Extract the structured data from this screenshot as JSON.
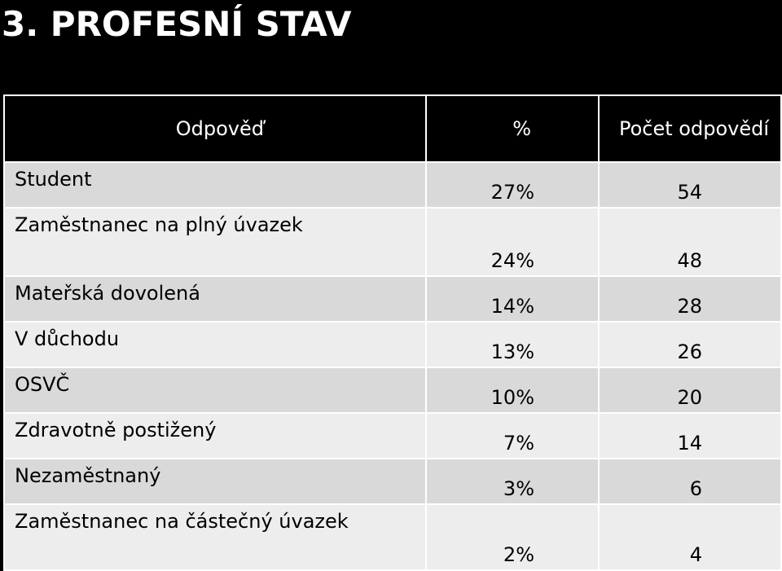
{
  "slide": {
    "title": "3. PROFESNÍ STAV"
  },
  "table": {
    "headers": {
      "answer": "Odpověď",
      "percent": "%",
      "count": "Počet odpovědí"
    },
    "rows": [
      {
        "label": "Student",
        "percent": "27%",
        "count": "54"
      },
      {
        "label": "Zaměstnanec na plný úvazek",
        "percent": "24%",
        "count": "48"
      },
      {
        "label": "Mateřská dovolená",
        "percent": "14%",
        "count": "28"
      },
      {
        "label": "V důchodu",
        "percent": "13%",
        "count": "26"
      },
      {
        "label": "OSVČ",
        "percent": "10%",
        "count": "20"
      },
      {
        "label": "Zdravotně postižený",
        "percent": "7%",
        "count": "14"
      },
      {
        "label": "Nezaměstnaný",
        "percent": "3%",
        "count": "6"
      },
      {
        "label": "Zaměstnanec na částečný úvazek",
        "percent": "2%",
        "count": "4"
      }
    ]
  },
  "colors": {
    "background": "#000000",
    "header_bg": "#000000",
    "row_dark": "#d9d9d9",
    "row_light": "#ededed",
    "grid": "#ffffff"
  }
}
